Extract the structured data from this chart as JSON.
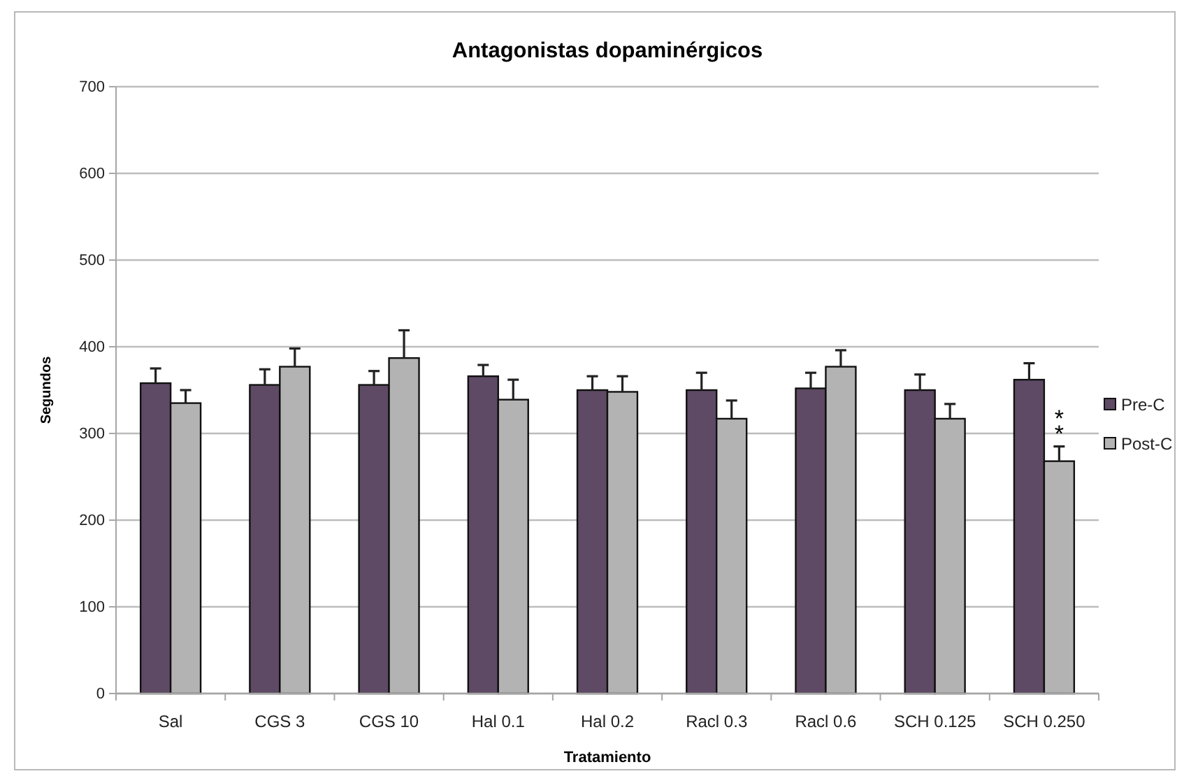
{
  "chart_data": {
    "type": "bar",
    "title": "Antagonistas dopaminérgicos",
    "xlabel": "Tratamiento",
    "ylabel": "Segundos",
    "categories": [
      "Sal",
      "CGS 3",
      "CGS 10",
      "Hal 0.1",
      "Hal 0.2",
      "Racl 0.3",
      "Racl 0.6",
      "SCH 0.125",
      "SCH 0.250"
    ],
    "series": [
      {
        "name": "Pre-C",
        "color": "#5e4a65",
        "values": [
          358,
          356,
          356,
          366,
          350,
          350,
          352,
          350,
          362
        ],
        "errors": [
          [
            358,
            375
          ],
          [
            356,
            374
          ],
          [
            356,
            372
          ],
          [
            366,
            379
          ],
          [
            350,
            366
          ],
          [
            350,
            370
          ],
          [
            352,
            370
          ],
          [
            350,
            368
          ],
          [
            362,
            381
          ]
        ]
      },
      {
        "name": "Post-C",
        "color": "#b3b3b3",
        "values": [
          335,
          377,
          387,
          339,
          348,
          317,
          377,
          317,
          268
        ],
        "errors": [
          [
            335,
            350
          ],
          [
            377,
            398
          ],
          [
            387,
            419
          ],
          [
            339,
            362
          ],
          [
            348,
            366
          ],
          [
            317,
            338
          ],
          [
            377,
            396
          ],
          [
            317,
            334
          ],
          [
            268,
            285
          ]
        ]
      }
    ],
    "ylim": [
      0,
      700
    ],
    "yticks": [
      0,
      100,
      200,
      300,
      400,
      500,
      600,
      700
    ],
    "grid": "y",
    "legend": "right",
    "annotations": [
      {
        "text": "**",
        "x": "SCH 0.250",
        "y": 300
      }
    ]
  }
}
